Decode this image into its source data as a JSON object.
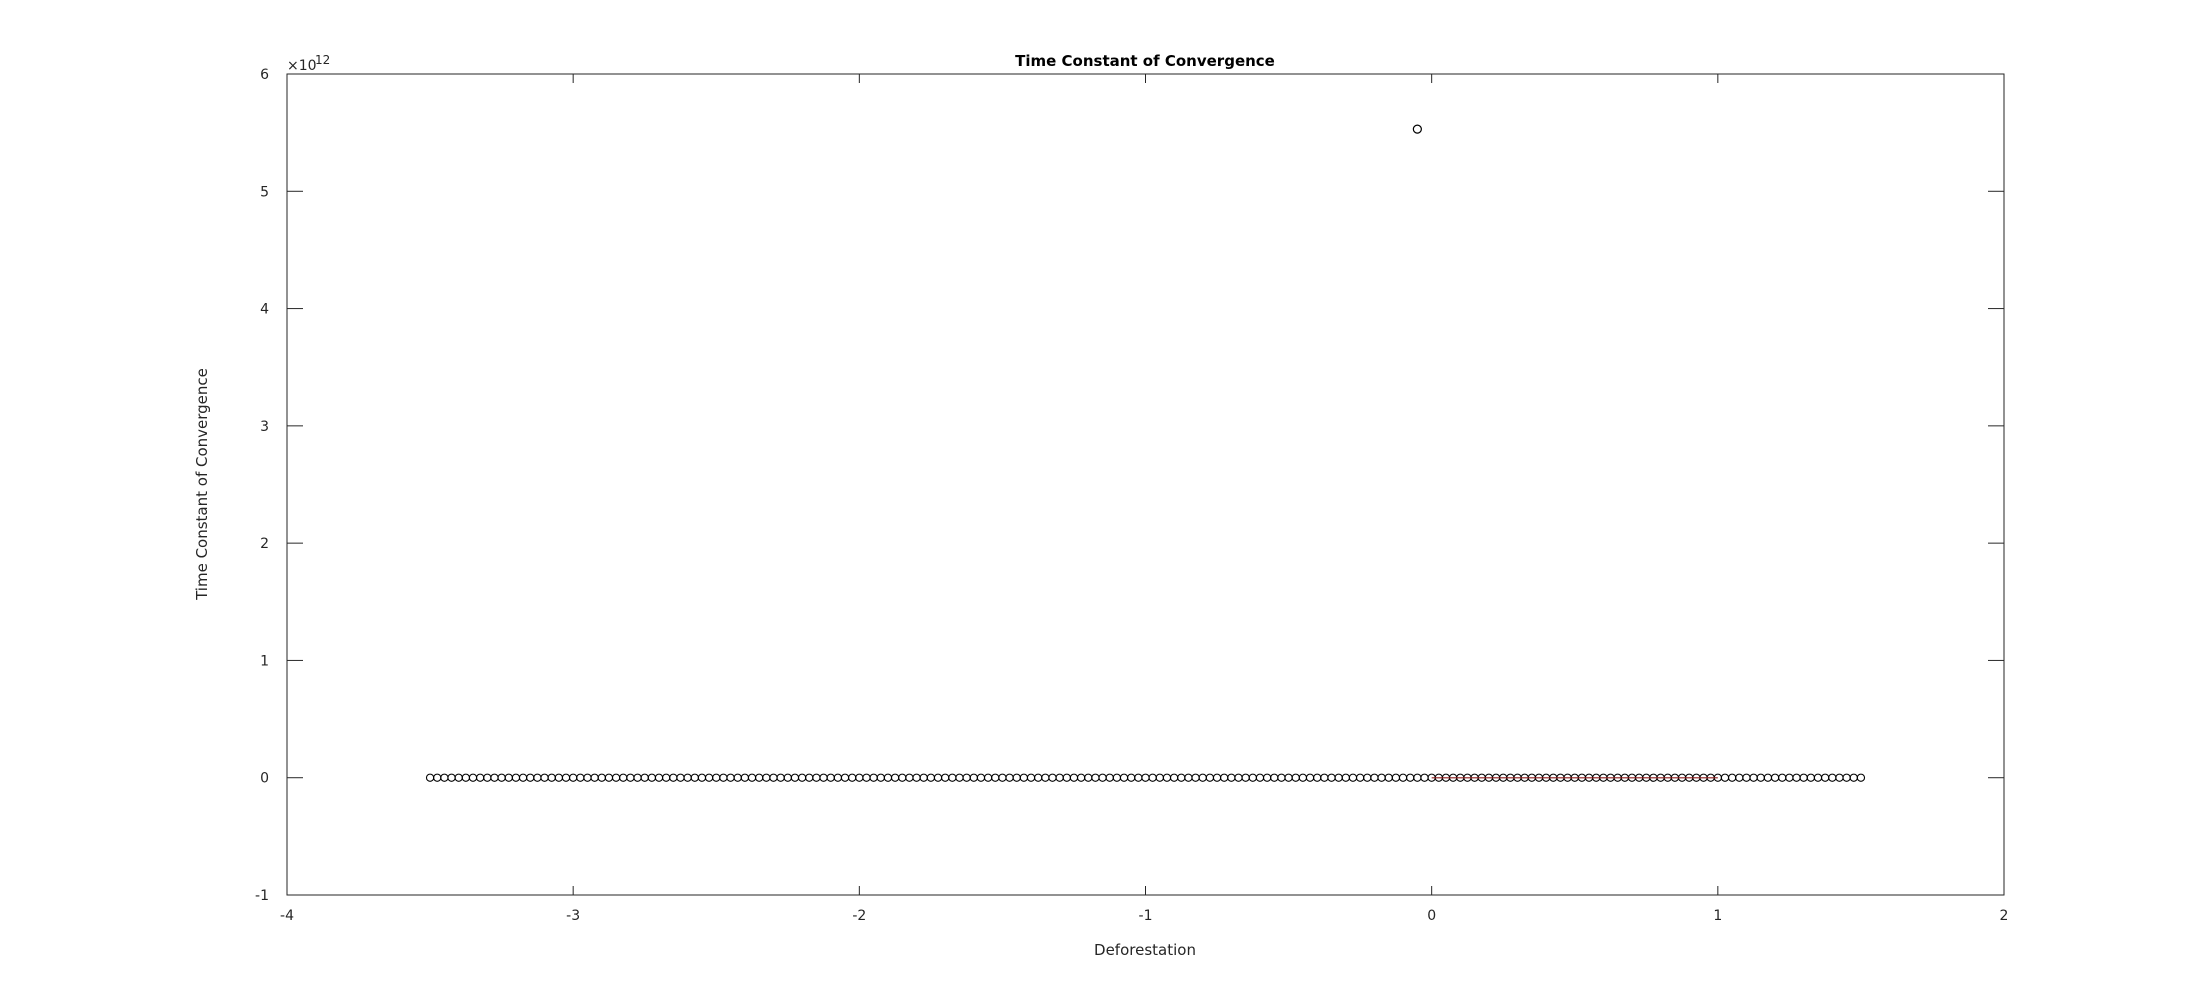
{
  "chart_data": {
    "type": "scatter",
    "title": "Time Constant of Convergence",
    "xlabel": "Deforestation",
    "ylabel": "Time Constant of Convergence",
    "xlim": [
      -4,
      2
    ],
    "ylim": [
      -1,
      6
    ],
    "y_scale_multiplier": "×10",
    "y_scale_exponent": "12",
    "x_ticks": [
      "-4",
      "-3",
      "-2",
      "-1",
      "0",
      "1",
      "2"
    ],
    "y_ticks": [
      "-1",
      "0",
      "1",
      "2",
      "3",
      "4",
      "5",
      "6"
    ],
    "grid": false,
    "marker": "open-circle",
    "colors": {
      "marker": "#000000",
      "band": "#8b1a1a",
      "axes": "#262626"
    },
    "series": [
      {
        "x_start": -3.5,
        "x_end": 1.5,
        "x_step": 0.025,
        "y": 0
      }
    ],
    "outliers": [
      {
        "x": -0.05,
        "y": 5.53
      }
    ],
    "band": {
      "x_start": 0,
      "x_end": 1.0,
      "y": 0
    }
  }
}
